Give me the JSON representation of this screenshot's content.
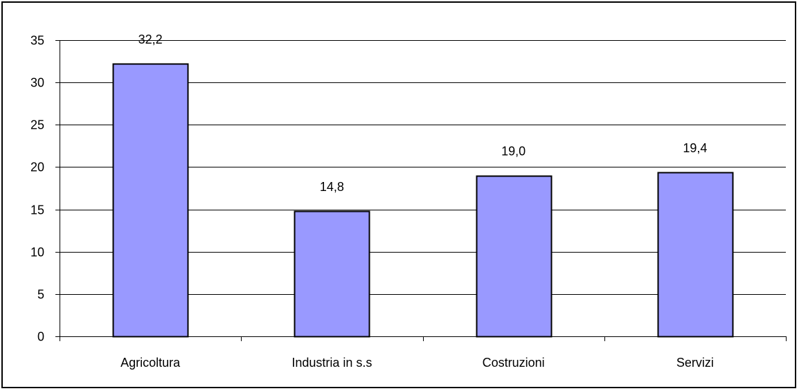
{
  "chart_data": {
    "type": "bar",
    "title": "",
    "xlabel": "",
    "ylabel": "",
    "categories": [
      "Agricoltura",
      "Industria in s.s",
      "Costruzioni",
      "Servizi"
    ],
    "values": [
      32.2,
      14.8,
      19.0,
      19.4
    ],
    "data_labels": [
      "32,2",
      "14,8",
      "19,0",
      "19,4"
    ],
    "y_ticks": [
      0,
      5,
      10,
      15,
      20,
      25,
      30,
      35
    ],
    "ylim": [
      0,
      35
    ],
    "grid": true,
    "legend": "none",
    "colors": {
      "bar_fill": "#9999ff",
      "bar_stroke": "#000000",
      "grid": "#000000",
      "axis": "#000000"
    }
  }
}
